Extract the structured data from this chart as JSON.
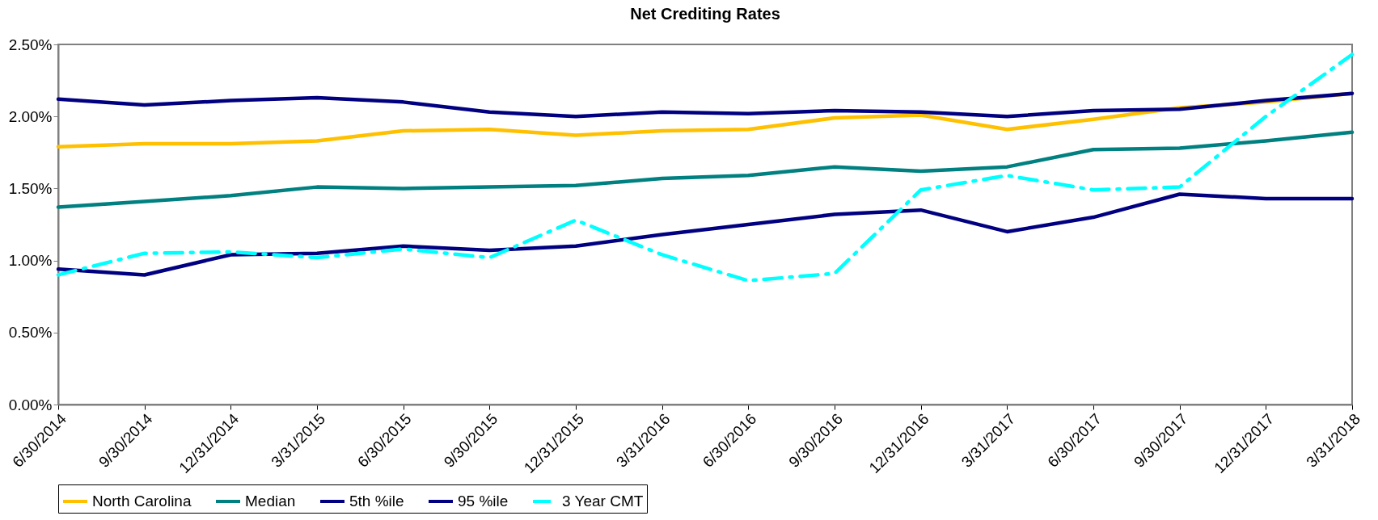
{
  "chart_data": {
    "type": "line",
    "title": "Net Crediting Rates",
    "categories": [
      "6/30/2014",
      "9/30/2014",
      "12/31/2014",
      "3/31/2015",
      "6/30/2015",
      "9/30/2015",
      "12/31/2015",
      "3/31/2016",
      "6/30/2016",
      "9/30/2016",
      "12/31/2016",
      "3/31/2017",
      "6/30/2017",
      "9/30/2017",
      "12/31/2017",
      "3/31/2018"
    ],
    "series": [
      {
        "name": "North Carolina",
        "color": "#ffc000",
        "values": [
          1.79,
          1.81,
          1.81,
          1.83,
          1.9,
          1.91,
          1.87,
          1.9,
          1.91,
          1.99,
          2.01,
          1.91,
          1.98,
          2.06,
          2.1,
          2.16
        ]
      },
      {
        "name": "Median",
        "color": "#008080",
        "values": [
          1.37,
          1.41,
          1.45,
          1.51,
          1.5,
          1.51,
          1.52,
          1.57,
          1.59,
          1.65,
          1.62,
          1.65,
          1.77,
          1.78,
          1.83,
          1.89
        ]
      },
      {
        "name": "5th %ile",
        "color": "#000080",
        "values": [
          0.94,
          0.9,
          1.04,
          1.05,
          1.1,
          1.07,
          1.1,
          1.18,
          1.25,
          1.32,
          1.35,
          1.2,
          1.3,
          1.46,
          1.43,
          1.43
        ]
      },
      {
        "name": "95 %ile",
        "color": "#000080",
        "values": [
          2.12,
          2.08,
          2.11,
          2.13,
          2.1,
          2.03,
          2.0,
          2.03,
          2.02,
          2.04,
          2.03,
          2.0,
          2.04,
          2.05,
          2.11,
          2.16
        ]
      },
      {
        "name": "3 Year CMT",
        "color": "#00ffff",
        "line_style": "dashed",
        "values": [
          0.9,
          1.05,
          1.06,
          1.02,
          1.08,
          1.02,
          1.28,
          1.04,
          0.86,
          0.91,
          1.49,
          1.59,
          1.49,
          1.51,
          2.0,
          2.43
        ]
      }
    ],
    "ylim": [
      0,
      2.5
    ],
    "yticks": [
      {
        "value": 0,
        "label": "0.00%"
      },
      {
        "value": 0.5,
        "label": "0.50%"
      },
      {
        "value": 1,
        "label": "1.00%"
      },
      {
        "value": 1.5,
        "label": "1.50%"
      },
      {
        "value": 2,
        "label": "2.00%"
      },
      {
        "value": 2.5,
        "label": "2.50%"
      }
    ],
    "grid": false,
    "legend": "bottom",
    "line_style": "solid",
    "marker": "none"
  }
}
